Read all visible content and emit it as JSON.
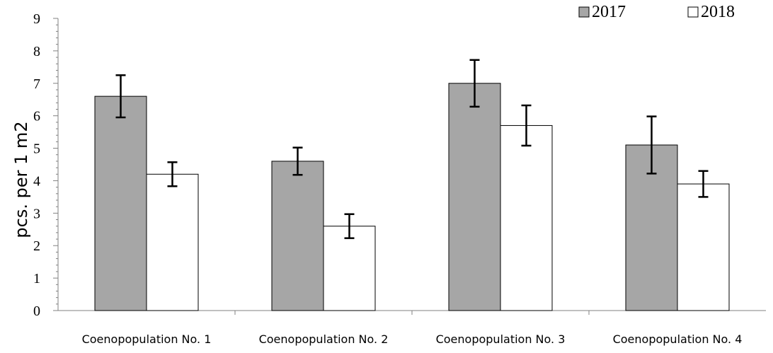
{
  "chart_data": {
    "type": "bar",
    "categories": [
      "Coenopopulation No. 1",
      "Coenopopulation No. 2",
      "Coenopopulation No. 3",
      "Coenopopulation No. 4"
    ],
    "series": [
      {
        "name": "2017",
        "values": [
          6.6,
          4.6,
          7.0,
          5.1
        ],
        "errors": [
          0.65,
          0.42,
          0.72,
          0.88
        ],
        "color": "#a6a6a6"
      },
      {
        "name": "2018",
        "values": [
          4.2,
          2.6,
          5.7,
          3.9
        ],
        "errors": [
          0.37,
          0.37,
          0.62,
          0.4
        ],
        "color": "#ffffff"
      }
    ],
    "title": "",
    "xlabel": "",
    "ylabel": "pcs. per 1 m2",
    "ylim": [
      0,
      9
    ],
    "yticks": [
      "0",
      "1",
      "2",
      "3",
      "4",
      "5",
      "6",
      "7",
      "8",
      "9"
    ],
    "minor_ticks": true,
    "grid": false,
    "legend_position": "top-right",
    "bar_outline_color": "#000000"
  }
}
